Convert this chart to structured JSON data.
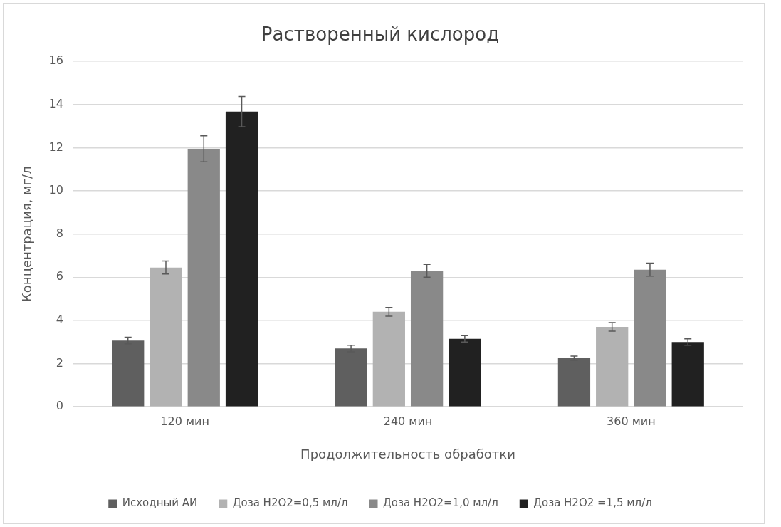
{
  "chart_data": {
    "type": "bar",
    "title": "Растворенный кислород",
    "xlabel": "Продолжительность обработки",
    "ylabel": "Концентрация, мг/л",
    "categories": [
      "120 мин",
      "240 мин",
      "360 мин"
    ],
    "series": [
      {
        "name": "Исходный АИ",
        "color": "#5f5f5f",
        "values": [
          3.07,
          2.7,
          2.25
        ],
        "errors": [
          0.15,
          0.15,
          0.1
        ]
      },
      {
        "name": "Доза Н2О2=0,5 мл/л",
        "color": "#b2b2b2",
        "values": [
          6.45,
          4.4,
          3.7
        ],
        "errors": [
          0.3,
          0.2,
          0.2
        ]
      },
      {
        "name": "Доза Н2О2=1,0 мл/л",
        "color": "#898989",
        "values": [
          11.95,
          6.3,
          6.35
        ],
        "errors": [
          0.6,
          0.3,
          0.3
        ]
      },
      {
        "name": "Доза Н2О2 =1,5 мл/л",
        "color": "#212121",
        "values": [
          13.67,
          3.15,
          3.0
        ],
        "errors": [
          0.7,
          0.15,
          0.15
        ]
      }
    ],
    "ylim": [
      0,
      16
    ],
    "yticks": [
      0,
      2,
      4,
      6,
      8,
      10,
      12,
      14,
      16
    ],
    "grid": "y",
    "legend": "bottom"
  }
}
